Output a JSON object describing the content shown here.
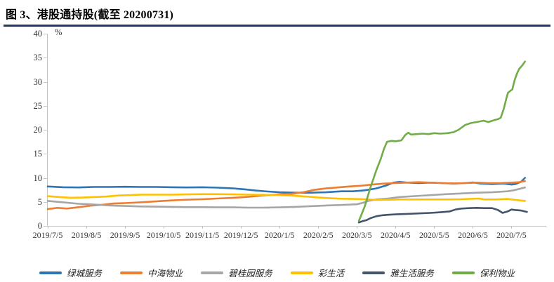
{
  "header": {
    "title": "图 3、港股通持股(截至 20200731)"
  },
  "colors": {
    "title_underline": "#1F3864",
    "axis_line": "#C3C3C3"
  },
  "chart_data": {
    "type": "line",
    "title": "港股通持股(截至 20200731)",
    "unit_label": "%",
    "ylim": [
      0,
      40
    ],
    "yticks": [
      0,
      5,
      10,
      15,
      20,
      25,
      30,
      35,
      40
    ],
    "grid": false,
    "legend_position": "bottom",
    "x_domain_months": [
      0,
      12.9
    ],
    "xtick_months": [
      0,
      1,
      2,
      3,
      4,
      5,
      6,
      7,
      8,
      9,
      10,
      11,
      12
    ],
    "xtick_labels": [
      "2019/7/5",
      "2019/8/5",
      "2019/9/5",
      "2019/10/5",
      "2019/11/5",
      "2019/12/5",
      "2020/1/5",
      "2020/2/5",
      "2020/3/5",
      "2020/4/5",
      "2020/5/5",
      "2020/6/5",
      "2020/7/5"
    ],
    "series": [
      {
        "name": "绿城服务",
        "color": "#2E75B6",
        "points": [
          [
            0,
            8.2
          ],
          [
            0.4,
            8.05
          ],
          [
            0.8,
            8.0
          ],
          [
            1.2,
            8.1
          ],
          [
            1.6,
            8.1
          ],
          [
            2,
            8.15
          ],
          [
            2.4,
            8.1
          ],
          [
            2.8,
            8.1
          ],
          [
            3.2,
            8.05
          ],
          [
            3.6,
            8.0
          ],
          [
            4,
            8.05
          ],
          [
            4.4,
            7.95
          ],
          [
            4.8,
            7.8
          ],
          [
            5.1,
            7.6
          ],
          [
            5.4,
            7.35
          ],
          [
            5.7,
            7.15
          ],
          [
            6,
            7.0
          ],
          [
            6.4,
            6.9
          ],
          [
            6.8,
            6.9
          ],
          [
            7.2,
            7.0
          ],
          [
            7.6,
            7.2
          ],
          [
            7.9,
            7.2
          ],
          [
            8.2,
            7.4
          ],
          [
            8.5,
            7.8
          ],
          [
            8.75,
            8.4
          ],
          [
            8.95,
            9.0
          ],
          [
            9.1,
            9.15
          ],
          [
            9.3,
            9.0
          ],
          [
            9.6,
            8.9
          ],
          [
            9.9,
            9.0
          ],
          [
            10.2,
            8.9
          ],
          [
            10.5,
            8.8
          ],
          [
            10.8,
            8.9
          ],
          [
            11,
            9.05
          ],
          [
            11.2,
            8.8
          ],
          [
            11.5,
            8.7
          ],
          [
            11.8,
            8.8
          ],
          [
            12,
            8.6
          ],
          [
            12.1,
            8.7
          ],
          [
            12.25,
            9.2
          ],
          [
            12.35,
            10.0
          ]
        ]
      },
      {
        "name": "中海物业",
        "color": "#ED7D31",
        "points": [
          [
            0,
            3.5
          ],
          [
            0.25,
            3.75
          ],
          [
            0.5,
            3.6
          ],
          [
            0.8,
            3.9
          ],
          [
            1.1,
            4.2
          ],
          [
            1.4,
            4.4
          ],
          [
            1.7,
            4.65
          ],
          [
            2,
            4.75
          ],
          [
            2.4,
            4.9
          ],
          [
            2.8,
            5.1
          ],
          [
            3.2,
            5.3
          ],
          [
            3.6,
            5.45
          ],
          [
            4,
            5.55
          ],
          [
            4.4,
            5.7
          ],
          [
            4.8,
            5.85
          ],
          [
            5.1,
            6.0
          ],
          [
            5.4,
            6.2
          ],
          [
            5.7,
            6.4
          ],
          [
            6,
            6.55
          ],
          [
            6.3,
            6.65
          ],
          [
            6.6,
            7.0
          ],
          [
            6.9,
            7.5
          ],
          [
            7.2,
            7.8
          ],
          [
            7.5,
            8.0
          ],
          [
            7.8,
            8.2
          ],
          [
            8.1,
            8.35
          ],
          [
            8.4,
            8.6
          ],
          [
            8.7,
            8.8
          ],
          [
            9,
            8.9
          ],
          [
            9.3,
            9.0
          ],
          [
            9.6,
            9.1
          ],
          [
            9.9,
            9.0
          ],
          [
            10.2,
            8.9
          ],
          [
            10.5,
            8.85
          ],
          [
            10.8,
            8.9
          ],
          [
            11.1,
            9.0
          ],
          [
            11.4,
            8.9
          ],
          [
            11.7,
            8.9
          ],
          [
            12,
            9.0
          ],
          [
            12.2,
            9.1
          ],
          [
            12.35,
            9.3
          ]
        ]
      },
      {
        "name": "碧桂园服务",
        "color": "#A6A6A6",
        "points": [
          [
            0,
            5.2
          ],
          [
            0.4,
            4.9
          ],
          [
            0.8,
            4.6
          ],
          [
            1.2,
            4.45
          ],
          [
            1.6,
            4.25
          ],
          [
            2,
            4.15
          ],
          [
            2.4,
            4.05
          ],
          [
            2.8,
            4.0
          ],
          [
            3.2,
            3.95
          ],
          [
            3.6,
            3.9
          ],
          [
            4,
            3.9
          ],
          [
            4.4,
            3.85
          ],
          [
            4.8,
            3.85
          ],
          [
            5.2,
            3.8
          ],
          [
            5.6,
            3.8
          ],
          [
            6,
            3.85
          ],
          [
            6.4,
            3.95
          ],
          [
            6.8,
            4.1
          ],
          [
            7.2,
            4.25
          ],
          [
            7.6,
            4.35
          ],
          [
            8,
            4.5
          ],
          [
            8.15,
            4.8
          ],
          [
            8.3,
            5.2
          ],
          [
            8.5,
            5.5
          ],
          [
            8.8,
            5.7
          ],
          [
            9.1,
            6.0
          ],
          [
            9.5,
            6.2
          ],
          [
            9.9,
            6.4
          ],
          [
            10.3,
            6.6
          ],
          [
            10.7,
            6.75
          ],
          [
            11.1,
            6.9
          ],
          [
            11.5,
            7.0
          ],
          [
            11.9,
            7.2
          ],
          [
            12.05,
            7.4
          ],
          [
            12.2,
            7.7
          ],
          [
            12.35,
            8.0
          ]
        ]
      },
      {
        "name": "彩生活",
        "color": "#FFC000",
        "points": [
          [
            0,
            6.2
          ],
          [
            0.3,
            6.0
          ],
          [
            0.6,
            5.85
          ],
          [
            0.9,
            5.9
          ],
          [
            1.2,
            6.0
          ],
          [
            1.5,
            6.1
          ],
          [
            1.8,
            6.3
          ],
          [
            2.1,
            6.4
          ],
          [
            2.4,
            6.5
          ],
          [
            2.8,
            6.5
          ],
          [
            3.2,
            6.5
          ],
          [
            3.6,
            6.55
          ],
          [
            4,
            6.6
          ],
          [
            4.4,
            6.6
          ],
          [
            4.8,
            6.55
          ],
          [
            5.2,
            6.5
          ],
          [
            5.6,
            6.45
          ],
          [
            6,
            6.4
          ],
          [
            6.3,
            6.3
          ],
          [
            6.7,
            6.1
          ],
          [
            7,
            5.9
          ],
          [
            7.3,
            5.75
          ],
          [
            7.6,
            5.65
          ],
          [
            7.9,
            5.6
          ],
          [
            8.2,
            5.55
          ],
          [
            8.5,
            5.4
          ],
          [
            8.8,
            5.45
          ],
          [
            9.1,
            5.5
          ],
          [
            9.5,
            5.5
          ],
          [
            9.9,
            5.5
          ],
          [
            10.3,
            5.5
          ],
          [
            10.7,
            5.55
          ],
          [
            11,
            5.65
          ],
          [
            11.15,
            5.7
          ],
          [
            11.3,
            5.5
          ],
          [
            11.6,
            5.5
          ],
          [
            11.9,
            5.6
          ],
          [
            12.1,
            5.4
          ],
          [
            12.35,
            5.2
          ]
        ]
      },
      {
        "name": "雅生活服务",
        "color": "#44546A",
        "points": [
          [
            8.05,
            0.7
          ],
          [
            8.15,
            1.0
          ],
          [
            8.25,
            1.2
          ],
          [
            8.35,
            1.6
          ],
          [
            8.5,
            2.0
          ],
          [
            8.65,
            2.2
          ],
          [
            8.8,
            2.3
          ],
          [
            9,
            2.4
          ],
          [
            9.3,
            2.5
          ],
          [
            9.6,
            2.6
          ],
          [
            9.9,
            2.7
          ],
          [
            10.1,
            2.8
          ],
          [
            10.4,
            3.0
          ],
          [
            10.55,
            3.4
          ],
          [
            10.7,
            3.6
          ],
          [
            10.9,
            3.7
          ],
          [
            11.1,
            3.75
          ],
          [
            11.3,
            3.7
          ],
          [
            11.5,
            3.7
          ],
          [
            11.65,
            3.3
          ],
          [
            11.77,
            2.7
          ],
          [
            11.9,
            3.0
          ],
          [
            12,
            3.4
          ],
          [
            12.1,
            3.3
          ],
          [
            12.25,
            3.2
          ],
          [
            12.4,
            2.9
          ]
        ]
      },
      {
        "name": "保利物业",
        "color": "#70AD47",
        "points": [
          [
            8.05,
            1.0
          ],
          [
            8.2,
            4.0
          ],
          [
            8.35,
            8.0
          ],
          [
            8.5,
            11.5
          ],
          [
            8.62,
            14.0
          ],
          [
            8.7,
            16.0
          ],
          [
            8.78,
            17.5
          ],
          [
            8.9,
            17.7
          ],
          [
            9.0,
            17.6
          ],
          [
            9.15,
            17.8
          ],
          [
            9.25,
            18.9
          ],
          [
            9.33,
            19.4
          ],
          [
            9.4,
            19.0
          ],
          [
            9.55,
            19.1
          ],
          [
            9.7,
            19.2
          ],
          [
            9.85,
            19.1
          ],
          [
            10.0,
            19.3
          ],
          [
            10.15,
            19.2
          ],
          [
            10.35,
            19.3
          ],
          [
            10.5,
            19.5
          ],
          [
            10.63,
            20.0
          ],
          [
            10.8,
            21.0
          ],
          [
            10.95,
            21.4
          ],
          [
            11.1,
            21.6
          ],
          [
            11.28,
            21.9
          ],
          [
            11.4,
            21.6
          ],
          [
            11.55,
            22.0
          ],
          [
            11.65,
            22.2
          ],
          [
            11.72,
            22.5
          ],
          [
            11.8,
            24.4
          ],
          [
            11.87,
            26.6
          ],
          [
            11.91,
            27.7
          ],
          [
            11.97,
            28.1
          ],
          [
            12.02,
            28.4
          ],
          [
            12.08,
            30.3
          ],
          [
            12.14,
            31.7
          ],
          [
            12.2,
            32.7
          ],
          [
            12.27,
            33.3
          ],
          [
            12.35,
            34.2
          ]
        ]
      }
    ]
  }
}
